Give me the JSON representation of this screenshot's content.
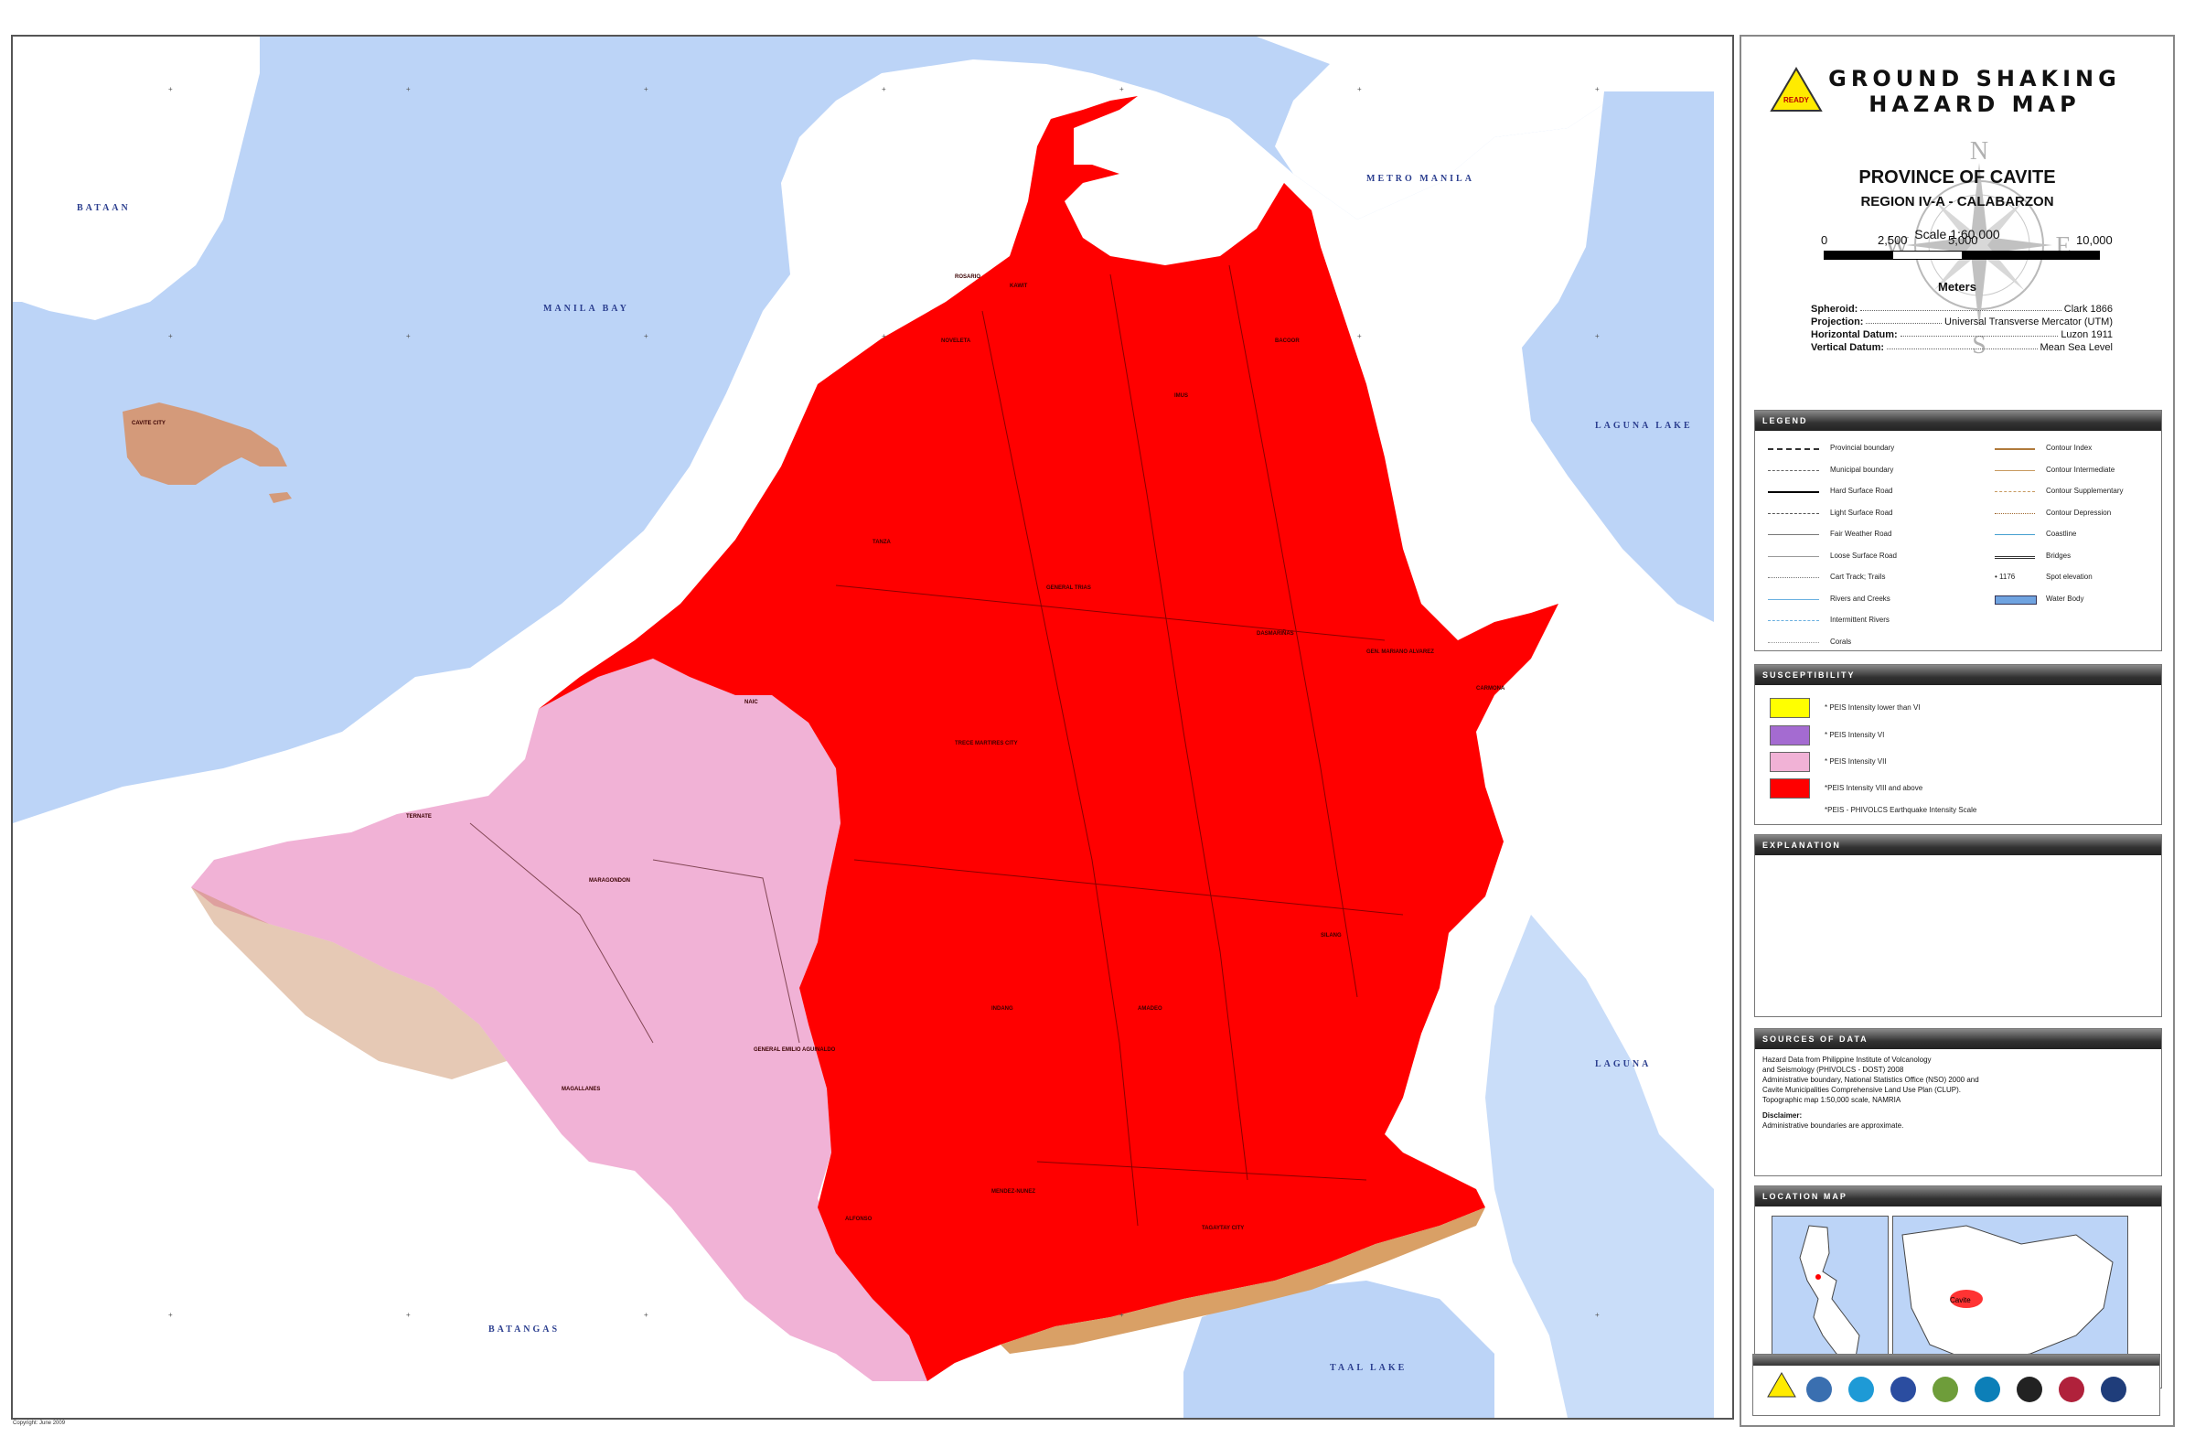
{
  "water_labels": {
    "bataan": "BATAAN",
    "manila_bay": "MANILA BAY",
    "metro_manila": "METRO MANILA",
    "laguna_lake": "LAGUNA LAKE",
    "laguna": "LAGUNA",
    "batangas": "BATANGAS",
    "taal_lake": "TAAL LAKE",
    "cavite_city": "CAVITE CITY"
  },
  "municipalities": {
    "kawit": "KAWIT",
    "noveleta": "NOVELETA",
    "imus": "IMUS",
    "bacoor": "BACOOR",
    "rosario": "ROSARIO",
    "tanza": "TANZA",
    "gen_trias": "GENERAL TRIAS",
    "dasmarinas": "DASMARIÑAS",
    "carmona": "CARMONA",
    "gma": "GEN. MARIANO ALVAREZ",
    "trece": "TRECE MARTIRES CITY",
    "naic": "NAIC",
    "ternate": "TERNATE",
    "maragondon": "MARAGONDON",
    "gen_aguinaldo": "GENERAL EMILIO AGUINALDO",
    "magallanes": "MAGALLANES",
    "indang": "INDANG",
    "amadeo": "AMADEO",
    "silang": "SILANG",
    "alfonso": "ALFONSO",
    "mendez": "MENDEZ-NUNEZ",
    "tagaytay": "TAGAYTAY CITY"
  },
  "copyright": "Copyright: June 2009",
  "header": {
    "title_line1": "GROUND SHAKING",
    "title_line2": "HAZARD MAP",
    "province": "PROVINCE OF CAVITE",
    "region": "REGION IV-A - CALABARZON",
    "scale": "Scale 1:60,000",
    "scale_ticks": [
      "0",
      "2,500",
      "5,000",
      "10,000"
    ],
    "scale_unit": "Meters"
  },
  "geodetic": [
    {
      "label": "Spheroid:",
      "value": "Clark 1866"
    },
    {
      "label": "Projection:",
      "value": "Universal Transverse Mercator (UTM)"
    },
    {
      "label": "Horizontal Datum:",
      "value": "Luzon 1911"
    },
    {
      "label": "Vertical Datum:",
      "value": "Mean Sea Level"
    }
  ],
  "legend": {
    "title": "LEGEND",
    "left": [
      "Provincial boundary",
      "Municipal boundary",
      "Hard Surface Road",
      "Light Surface Road",
      "Fair Weather Road",
      "Loose Surface Road",
      "Cart Track; Trails",
      "Rivers and Creeks",
      "Intermittent Rivers",
      "Corals"
    ],
    "right": [
      "Contour Index",
      "Contour Intermediate",
      "Contour Supplementary",
      "Contour Depression",
      "Coastline",
      "Bridges",
      "Spot elevation",
      "Water Body"
    ],
    "spot_elevation_value": "1176"
  },
  "susceptibility": {
    "title": "SUSCEPTIBILITY",
    "items": [
      {
        "label": "* PEIS Intensity lower than VI",
        "color": "#ffff00"
      },
      {
        "label": "* PEIS Intensity VI",
        "color": "#a46bd1"
      },
      {
        "label": "* PEIS Intensity VII",
        "color": "#f1b2d6"
      },
      {
        "label": "*PEIS Intensity VIII and above",
        "color": "#ff0000"
      }
    ],
    "note": "*PEIS - PHIVOLCS Earthquake Intensity Scale"
  },
  "explanation": {
    "title": "EXPLANATION"
  },
  "sources": {
    "title": "SOURCES OF DATA",
    "lines": [
      "Hazard Data from Philippine Institute of Volcanology",
      "and Seismology (PHIVOLCS - DOST) 2008",
      "Administrative boundary, National Statistics Office (NSO) 2000 and",
      "Cavite Municipalities Comprehensive Land Use Plan (CLUP).",
      "Topographic map 1:50,000 scale,  NAMRIA"
    ],
    "disclaimer_title": "Disclaimer:",
    "disclaimer": "Administrative boundaries are approximate."
  },
  "location_map": {
    "title": "LOCATION MAP",
    "inset_label": "Cavite"
  },
  "colors": {
    "water": "#bcd4f7",
    "high_hazard": "#ff0000",
    "intensity_vii": "#f1b2d6",
    "terrain_brown": "#c8885a"
  }
}
